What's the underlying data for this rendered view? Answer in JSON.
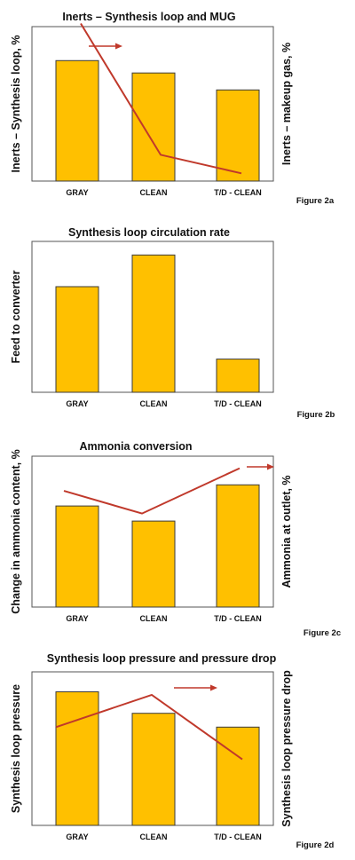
{
  "chart_data": [
    {
      "type": "bar",
      "title": "Inerts – Synthesis loop and MUG",
      "ylabel": "Inerts – Synthesis loop, %",
      "ylabel_right": "Inerts – makeup gas, %",
      "figure_label": "Figure 2a",
      "categories": [
        "GRAY",
        "CLEAN",
        "T/D - CLEAN"
      ],
      "series": [
        {
          "values": [
            0.78,
            0.7,
            0.59
          ]
        },
        {
          "values": [
            1.02,
            0.17,
            0.05
          ]
        }
      ],
      "arrow_direction": "right",
      "ylim": [
        0,
        1
      ]
    },
    {
      "type": "bar",
      "title": "Synthesis loop circulation rate",
      "ylabel": "Feed to converter",
      "figure_label": "Figure 2b",
      "categories": [
        "GRAY",
        "CLEAN",
        "T/D - CLEAN"
      ],
      "series": [
        {
          "values": [
            0.7,
            0.91,
            0.22
          ]
        }
      ],
      "ylim": [
        0,
        1
      ]
    },
    {
      "type": "bar",
      "title": "Ammonia conversion",
      "ylabel": "Change in ammonia content, %",
      "ylabel_right": "Ammonia at outlet, %",
      "figure_label": "Figure 2c",
      "categories": [
        "GRAY",
        "CLEAN",
        "T/D - CLEAN"
      ],
      "series": [
        {
          "values": [
            0.67,
            0.57,
            0.81
          ]
        },
        {
          "values": [
            0.77,
            0.62,
            0.92
          ]
        }
      ],
      "arrow_direction": "right",
      "ylim": [
        0,
        1
      ]
    },
    {
      "type": "bar",
      "title": "Synthesis loop pressure and pressure drop",
      "ylabel": "Synthesis loop pressure",
      "ylabel_right": "Synthesis loop pressure drop",
      "figure_label": "Figure 2d",
      "categories": [
        "GRAY",
        "CLEAN",
        "T/D - CLEAN"
      ],
      "series": [
        {
          "values": [
            0.87,
            0.73,
            0.64
          ]
        },
        {
          "values": [
            0.64,
            0.85,
            0.43
          ]
        }
      ],
      "arrow_direction": "right",
      "ylim": [
        0,
        1
      ]
    }
  ],
  "colors": {
    "bar_fill": "#FFC000",
    "bar_stroke": "#3a3a3a",
    "line": "#C0392B"
  }
}
